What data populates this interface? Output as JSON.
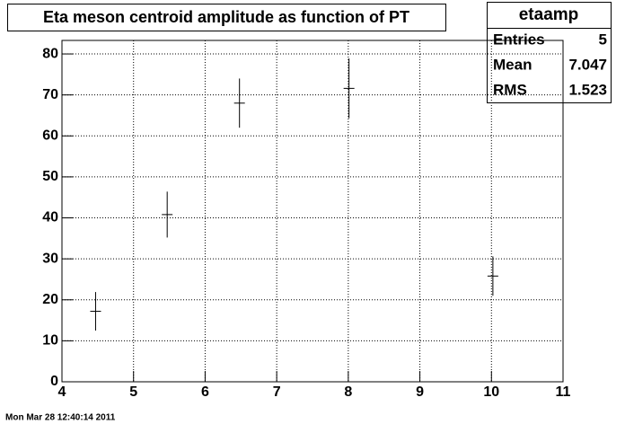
{
  "chart_data": {
    "type": "errorbar",
    "title": "Eta meson centroid amplitude as function of PT",
    "x": [
      4.47,
      5.47,
      6.48,
      8.01,
      10.02
    ],
    "values": [
      17.2,
      40.8,
      68.0,
      71.6,
      25.8
    ],
    "errors": [
      4.7,
      5.6,
      6.0,
      7.3,
      4.8
    ],
    "color": "#000000",
    "xlim": [
      4,
      11
    ],
    "xticks": [
      4,
      5,
      6,
      7,
      8,
      9,
      10,
      11
    ],
    "ylim": [
      0,
      83.3
    ],
    "yticks": [
      0,
      10,
      20,
      30,
      40,
      50,
      60,
      70,
      80
    ],
    "grid": true,
    "stats": {
      "name": "etaamp",
      "rows": [
        [
          "Entries",
          5
        ],
        [
          "Mean",
          7.047
        ],
        [
          "RMS",
          1.523
        ]
      ]
    },
    "timestamp": "Mon Mar 28 12:40:14 2011"
  }
}
